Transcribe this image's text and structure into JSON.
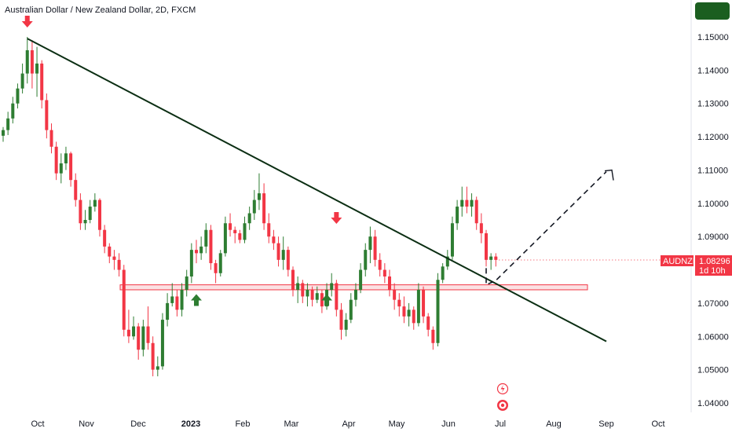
{
  "header": {
    "title": "Australian Dollar / New Zealand Dollar, 2D, FXCM"
  },
  "symbol_badge": {
    "label": "AUDNZD"
  },
  "price_badge": {
    "price": "1.08296",
    "countdown": "1d 10h"
  },
  "colors": {
    "up": "#2e7d32",
    "down": "#f23645",
    "trendline": "#0b2e13",
    "zone_fill": "#f8c8cc",
    "zone_border": "#f23645",
    "header_button": "#1b5e20"
  },
  "icons": {
    "arrow_down_markers": "arrow-down-icon",
    "arrow_up_markers": "arrow-up-icon",
    "event_icon": "lightning-icon",
    "event_icon_2": "dividends-icon"
  },
  "chart_data": {
    "type": "candlestick",
    "title": "Australian Dollar / New Zealand Dollar, 2D, FXCM",
    "ylim": [
      1.035,
      1.162
    ],
    "y_ticks": [
      "1.15000",
      "1.14000",
      "1.13000",
      "1.12000",
      "1.11000",
      "1.10000",
      "1.09000",
      "1.08000",
      "1.07000",
      "1.06000",
      "1.05000",
      "1.04000"
    ],
    "x_ticks": [
      "Oct",
      "Nov",
      "Dec",
      "2023",
      "Feb",
      "Mar",
      "Apr",
      "May",
      "Jun",
      "Jul",
      "Aug",
      "Sep",
      "Oct"
    ],
    "x_ticks_bold": [
      "2023"
    ],
    "last_price": 1.08296,
    "candles_ohlc": [
      [
        1.1203,
        1.1229,
        1.1185,
        1.122
      ],
      [
        1.122,
        1.1275,
        1.1205,
        1.1255
      ],
      [
        1.1255,
        1.132,
        1.124,
        1.13
      ],
      [
        1.13,
        1.136,
        1.1285,
        1.1345
      ],
      [
        1.1345,
        1.142,
        1.133,
        1.139
      ],
      [
        1.139,
        1.15,
        1.136,
        1.146
      ],
      [
        1.146,
        1.149,
        1.1345,
        1.139
      ],
      [
        1.139,
        1.147,
        1.132,
        1.142
      ],
      [
        1.142,
        1.143,
        1.1285,
        1.131
      ],
      [
        1.131,
        1.133,
        1.1195,
        1.122
      ],
      [
        1.122,
        1.124,
        1.115,
        1.117
      ],
      [
        1.117,
        1.1185,
        1.107,
        1.109
      ],
      [
        1.109,
        1.115,
        1.106,
        1.112
      ],
      [
        1.112,
        1.117,
        1.11,
        1.115
      ],
      [
        1.115,
        1.1155,
        1.105,
        1.107
      ],
      [
        1.107,
        1.109,
        1.099,
        1.101
      ],
      [
        1.101,
        1.103,
        1.092,
        1.094
      ],
      [
        1.094,
        1.098,
        1.092,
        1.095
      ],
      [
        1.095,
        1.101,
        1.094,
        1.099
      ],
      [
        1.099,
        1.103,
        1.0975,
        1.101
      ],
      [
        1.101,
        1.1015,
        1.09,
        1.092
      ],
      [
        1.092,
        1.0935,
        1.085,
        1.087
      ],
      [
        1.087,
        1.088,
        1.082,
        1.084
      ],
      [
        1.084,
        1.086,
        1.08,
        1.083
      ],
      [
        1.083,
        1.085,
        1.078,
        1.08
      ],
      [
        1.08,
        1.0815,
        1.06,
        1.062
      ],
      [
        1.062,
        1.068,
        1.058,
        1.06
      ],
      [
        1.06,
        1.066,
        1.059,
        1.063
      ],
      [
        1.063,
        1.064,
        1.053,
        1.056
      ],
      [
        1.056,
        1.065,
        1.054,
        1.063
      ],
      [
        1.063,
        1.069,
        1.056,
        1.058
      ],
      [
        1.058,
        1.06,
        1.048,
        1.05
      ],
      [
        1.05,
        1.054,
        1.048,
        1.051
      ],
      [
        1.051,
        1.067,
        1.05,
        1.065
      ],
      [
        1.065,
        1.073,
        1.063,
        1.07
      ],
      [
        1.07,
        1.076,
        1.069,
        1.072
      ],
      [
        1.072,
        1.074,
        1.066,
        1.068
      ],
      [
        1.068,
        1.076,
        1.066,
        1.074
      ],
      [
        1.074,
        1.08,
        1.072,
        1.078
      ],
      [
        1.078,
        1.088,
        1.076,
        1.086
      ],
      [
        1.086,
        1.089,
        1.082,
        1.085
      ],
      [
        1.085,
        1.09,
        1.083,
        1.087
      ],
      [
        1.087,
        1.094,
        1.085,
        1.092
      ],
      [
        1.092,
        1.0935,
        1.08,
        1.082
      ],
      [
        1.082,
        1.083,
        1.076,
        1.079
      ],
      [
        1.079,
        1.086,
        1.078,
        1.085
      ],
      [
        1.085,
        1.096,
        1.084,
        1.094
      ],
      [
        1.094,
        1.097,
        1.09,
        1.092
      ],
      [
        1.092,
        1.093,
        1.088,
        1.091
      ],
      [
        1.091,
        1.092,
        1.088,
        1.089
      ],
      [
        1.089,
        1.096,
        1.088,
        1.094
      ],
      [
        1.094,
        1.099,
        1.092,
        1.097
      ],
      [
        1.097,
        1.104,
        1.095,
        1.101
      ],
      [
        1.101,
        1.109,
        1.098,
        1.103
      ],
      [
        1.103,
        1.106,
        1.092,
        1.094
      ],
      [
        1.094,
        1.097,
        1.088,
        1.09
      ],
      [
        1.09,
        1.092,
        1.086,
        1.088
      ],
      [
        1.088,
        1.09,
        1.081,
        1.083
      ],
      [
        1.083,
        1.09,
        1.08,
        1.086
      ],
      [
        1.086,
        1.087,
        1.078,
        1.08
      ],
      [
        1.08,
        1.081,
        1.072,
        1.074
      ],
      [
        1.074,
        1.078,
        1.07,
        1.076
      ],
      [
        1.076,
        1.077,
        1.07,
        1.072
      ],
      [
        1.072,
        1.076,
        1.069,
        1.074
      ],
      [
        1.074,
        1.075,
        1.069,
        1.071
      ],
      [
        1.071,
        1.075,
        1.07,
        1.073
      ],
      [
        1.073,
        1.074,
        1.067,
        1.069
      ],
      [
        1.069,
        1.076,
        1.068,
        1.074
      ],
      [
        1.074,
        1.079,
        1.072,
        1.076
      ],
      [
        1.076,
        1.077,
        1.066,
        1.068
      ],
      [
        1.068,
        1.07,
        1.059,
        1.062
      ],
      [
        1.062,
        1.067,
        1.06,
        1.065
      ],
      [
        1.065,
        1.073,
        1.064,
        1.071
      ],
      [
        1.071,
        1.076,
        1.069,
        1.074
      ],
      [
        1.074,
        1.082,
        1.073,
        1.08
      ],
      [
        1.08,
        1.088,
        1.078,
        1.086
      ],
      [
        1.086,
        1.093,
        1.082,
        1.09
      ],
      [
        1.09,
        1.092,
        1.081,
        1.083
      ],
      [
        1.083,
        1.085,
        1.078,
        1.08
      ],
      [
        1.08,
        1.082,
        1.076,
        1.078
      ],
      [
        1.078,
        1.08,
        1.072,
        1.074
      ],
      [
        1.074,
        1.076,
        1.068,
        1.071
      ],
      [
        1.071,
        1.073,
        1.066,
        1.069
      ],
      [
        1.069,
        1.072,
        1.064,
        1.066
      ],
      [
        1.066,
        1.07,
        1.063,
        1.068
      ],
      [
        1.068,
        1.069,
        1.062,
        1.064
      ],
      [
        1.064,
        1.076,
        1.063,
        1.074
      ],
      [
        1.074,
        1.075,
        1.064,
        1.066
      ],
      [
        1.066,
        1.067,
        1.06,
        1.062
      ],
      [
        1.062,
        1.063,
        1.056,
        1.058
      ],
      [
        1.058,
        1.079,
        1.057,
        1.077
      ],
      [
        1.077,
        1.082,
        1.076,
        1.081
      ],
      [
        1.081,
        1.086,
        1.08,
        1.084
      ],
      [
        1.084,
        1.096,
        1.083,
        1.094
      ],
      [
        1.094,
        1.101,
        1.092,
        1.099
      ],
      [
        1.099,
        1.105,
        1.096,
        1.101
      ],
      [
        1.101,
        1.105,
        1.097,
        1.099
      ],
      [
        1.099,
        1.103,
        1.096,
        1.101
      ],
      [
        1.101,
        1.102,
        1.092,
        1.094
      ],
      [
        1.094,
        1.097,
        1.088,
        1.091
      ],
      [
        1.091,
        1.092,
        1.081,
        1.083
      ],
      [
        1.083,
        1.085,
        1.08,
        1.084
      ],
      [
        1.084,
        1.085,
        1.081,
        1.083
      ]
    ],
    "support_zone": [
      1.074,
      1.0755
    ],
    "trendline": {
      "start": {
        "candle_index": 5,
        "price": 1.1495
      },
      "end": {
        "x_label": "Sep",
        "price": 1.0585
      }
    },
    "projection_path": [
      {
        "candle_index": 100,
        "price": 1.0805
      },
      {
        "candle_index": 100,
        "price": 1.0755
      },
      {
        "candle_index": 102,
        "price": 1.0768
      },
      {
        "x_label": "Sep",
        "price": 1.1095
      }
    ],
    "markers": [
      {
        "type": "arrow-down",
        "candle_index": 5,
        "price": 1.154,
        "color": "down"
      },
      {
        "type": "arrow-up",
        "candle_index": 40,
        "price": 1.0715,
        "color": "up"
      },
      {
        "type": "arrow-down",
        "candle_index": 69,
        "price": 1.095,
        "color": "down"
      },
      {
        "type": "arrow-up",
        "candle_index": 67,
        "price": 1.0715,
        "color": "up"
      }
    ]
  }
}
